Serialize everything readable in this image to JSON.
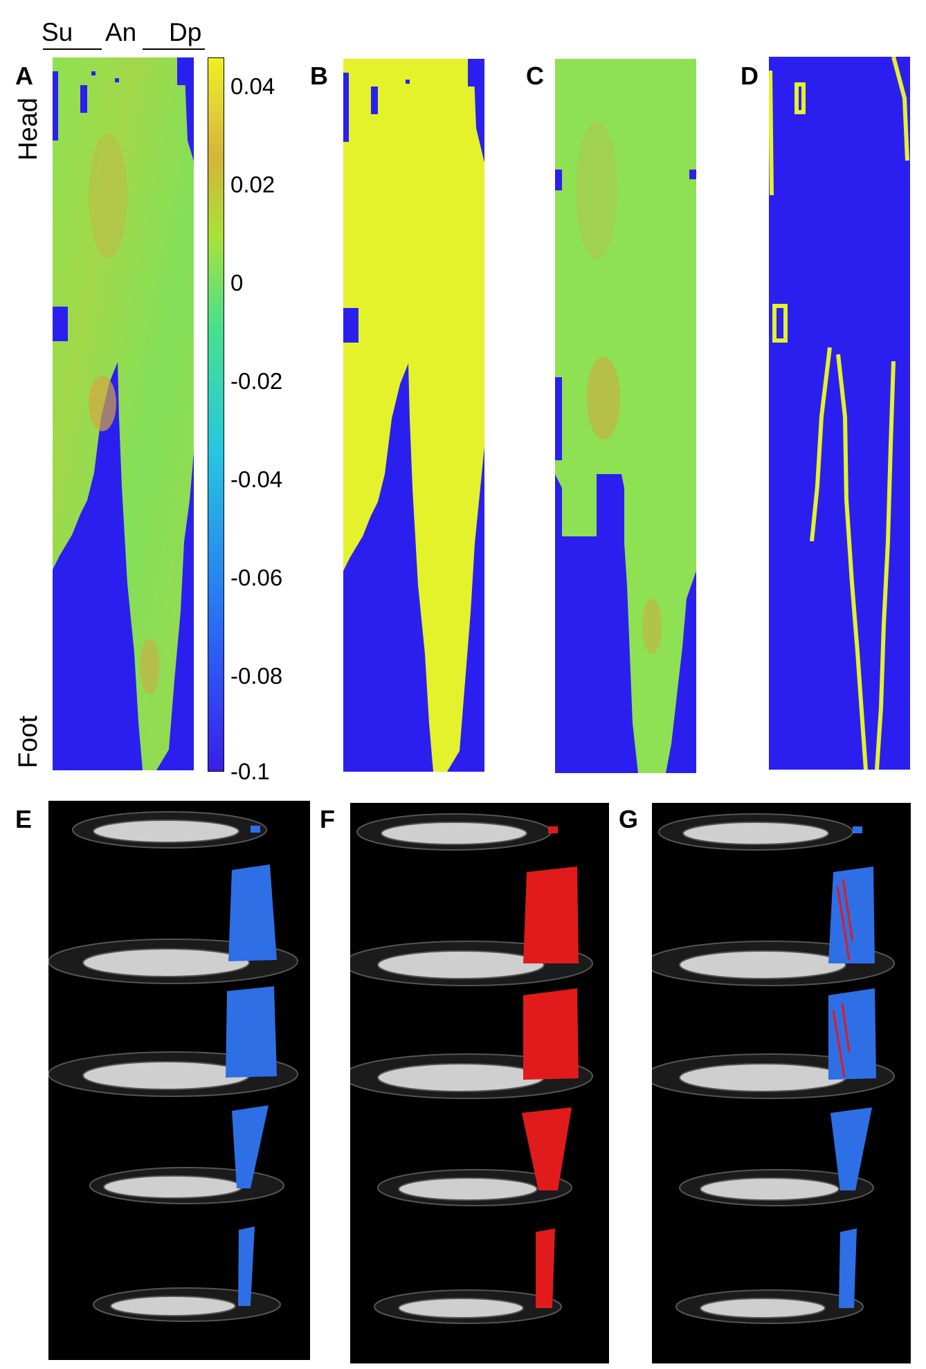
{
  "panels": {
    "A": "A",
    "B": "B",
    "C": "C",
    "D": "D",
    "E": "E",
    "F": "F",
    "G": "G"
  },
  "orientation": {
    "head": "Head",
    "foot": "Foot",
    "columns": [
      "Su",
      "An",
      "Dp"
    ]
  },
  "colorbar": {
    "ticks": [
      "0.04",
      "0.02",
      "0",
      "-0.02",
      "-0.04",
      "-0.06",
      "-0.08",
      "-0.1"
    ],
    "range": [
      -0.1,
      0.045
    ],
    "colors": [
      "#3a1ee8",
      "#2a6bf5",
      "#26c7e0",
      "#48e08e",
      "#a8e23a",
      "#d4b53a",
      "#e5d535",
      "#eef020"
    ]
  },
  "colors": {
    "background_mask": "#2b1ff0",
    "map_green": "#8fe24f",
    "map_orange": "#d4a640",
    "binary_yellow": "#e4f22b",
    "fiber_blue": "#2e6fe6",
    "fiber_red": "#e11b1b",
    "render_bg": "#000000"
  }
}
